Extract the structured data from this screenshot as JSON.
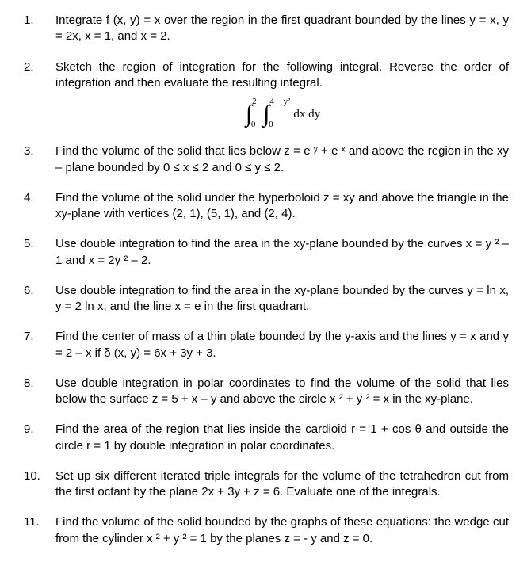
{
  "problems": [
    {
      "num": "1.",
      "text": "Integrate f (x, y) = x over the region in the first quadrant bounded by the lines y = x, y = 2x, x = 1, and x = 2."
    },
    {
      "num": "2.",
      "text": "Sketch the region of integration for the following integral.  Reverse the order of integration and then evaluate the resulting integral.",
      "integral": {
        "outer_lower": "0",
        "outer_upper": "2",
        "inner_lower": "0",
        "inner_upper": "4 − y²",
        "body": "dx  dy"
      }
    },
    {
      "num": "3.",
      "text": "Find the volume of the solid that lies below z = e ʸ + e ˣ and above the region in the xy – plane bounded by 0 ≤ x ≤ 2 and 0 ≤ y ≤ 2."
    },
    {
      "num": "4.",
      "text": "Find the volume of the solid under the hyperboloid z = xy and above the triangle in the xy-plane with vertices (2, 1), (5, 1), and (2, 4)."
    },
    {
      "num": "5.",
      "text": "Use double integration to find the area in the xy-plane bounded by the curves x = y ² – 1 and x = 2y ² – 2."
    },
    {
      "num": "6.",
      "text": "Use double integration to find the area in the xy-plane bounded by the curves y = ln x, y = 2 ln x, and the line x = e in the first quadrant."
    },
    {
      "num": "7.",
      "text": "Find the center of mass of a thin plate bounded by the y-axis and the lines y = x and y = 2 – x if δ (x, y) = 6x + 3y + 3."
    },
    {
      "num": "8.",
      "text": "Use double integration in polar coordinates to find the volume of the solid that lies below the surface z = 5 + x – y and above the circle x ² + y ² = x in the xy-plane."
    },
    {
      "num": "9.",
      "text": "Find the area of the region that lies inside the cardioid r = 1 + cos θ and outside the circle r = 1 by double integration in polar coordinates."
    },
    {
      "num": "10.",
      "text": "Set up six different iterated triple integrals for the volume of the tetrahedron cut from the first octant by the plane 2x + 3y + z = 6.  Evaluate one of the integrals."
    },
    {
      "num": "11.",
      "text": "Find the volume of the solid bounded by the graphs of these equations:  the wedge cut from the cylinder x ² + y ² = 1 by the planes z = - y and z = 0."
    }
  ]
}
